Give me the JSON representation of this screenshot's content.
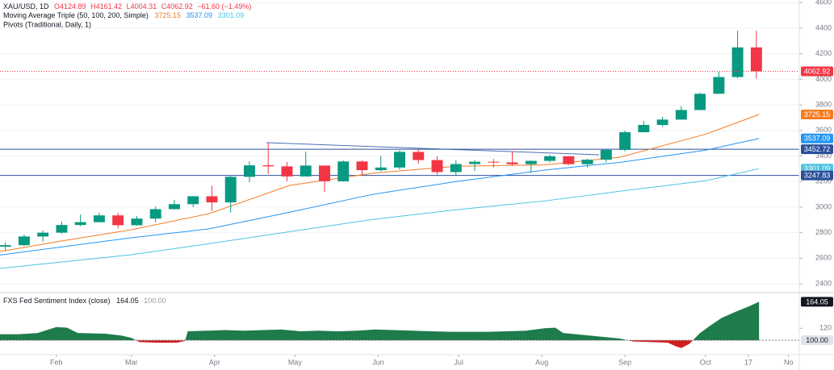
{
  "chart_data": [
    {
      "type": "candlestick",
      "header": {
        "symbol": "XAU/USD, 1D",
        "open": "O4124.89",
        "high": "H4161.42",
        "low": "L4004.31",
        "close": "C4062.92",
        "change": "−61.60 (−1.49%)"
      },
      "indicator_title": "Moving Average Triple (50, 100, 200, Simple)",
      "pivots_title": "Pivots (Traditional, Daily, 1)",
      "x": [
        13,
        20,
        27,
        34,
        41,
        48,
        55,
        62,
        69,
        76,
        83,
        90,
        97,
        104,
        111,
        118,
        125,
        132,
        139,
        146,
        153,
        160,
        167,
        174,
        181,
        188,
        195,
        202,
        209,
        216,
        223,
        230,
        237,
        244,
        251,
        258,
        265,
        272,
        279,
        286,
        293
      ],
      "open": [
        2690,
        2702,
        2770,
        2800,
        2860,
        2882,
        2935,
        2858,
        2910,
        2984,
        3023,
        3085,
        3037,
        3237,
        3327,
        3319,
        3240,
        3325,
        3202,
        3357,
        3289,
        3310,
        3432,
        3368,
        3274,
        3337,
        3355,
        3350,
        3336,
        3362,
        3398,
        3336,
        3371,
        3448,
        3586,
        3643,
        3685,
        3760,
        3887,
        4018,
        4250
      ],
      "high": [
        2725,
        2785,
        2817,
        2886,
        2942,
        2954,
        2956,
        2930,
        3004,
        3057,
        3087,
        3167,
        3245,
        3358,
        3500,
        3353,
        3435,
        3325,
        3365,
        3365,
        3403,
        3445,
        3452,
        3398,
        3365,
        3368,
        3377,
        3438,
        3365,
        3410,
        3400,
        3378,
        3453,
        3600,
        3674,
        3707,
        3791,
        3897,
        4059,
        4380,
        4381
      ],
      "low": [
        2660,
        2695,
        2730,
        2790,
        2850,
        2880,
        2832,
        2855,
        2880,
        2980,
        3000,
        2970,
        2957,
        3195,
        3260,
        3202,
        3240,
        3120,
        3200,
        3245,
        3280,
        3294,
        3340,
        3255,
        3248,
        3283,
        3310,
        3325,
        3268,
        3350,
        3330,
        3311,
        3351,
        3436,
        3584,
        3627,
        3684,
        3758,
        3886,
        4008,
        4004.31
      ],
      "close": [
        2702,
        2770,
        2800,
        2860,
        2882,
        2935,
        2858,
        2910,
        2984,
        3023,
        3085,
        3037,
        3237,
        3327,
        3319,
        3240,
        3325,
        3202,
        3357,
        3289,
        3310,
        3432,
        3368,
        3274,
        3337,
        3355,
        3350,
        3336,
        3362,
        3398,
        3336,
        3371,
        3448,
        3586,
        3643,
        3685,
        3760,
        3887,
        4018,
        4250,
        4062.92
      ],
      "up_color": "#089981",
      "down_color": "#f23645",
      "series": [
        {
          "name": "MA 50",
          "color": "#f57c1f",
          "x": [
            11,
            32,
            60,
            89,
            119,
            150,
            181,
            214,
            242,
            274,
            294
          ],
          "values": [
            2652,
            2728,
            2823,
            2949,
            3170,
            3265,
            3320,
            3330,
            3390,
            3570,
            3725.15
          ]
        },
        {
          "name": "MA 100",
          "color": "#2196f3",
          "x": [
            11,
            60,
            89,
            119,
            150,
            181,
            214,
            242,
            274,
            294
          ],
          "values": [
            2625,
            2760,
            2830,
            2960,
            3100,
            3200,
            3290,
            3350,
            3445,
            3537.09
          ]
        },
        {
          "name": "MA 200",
          "color": "#4dc3e0",
          "x": [
            11,
            60,
            89,
            119,
            150,
            181,
            214,
            242,
            274,
            294
          ],
          "values": [
            2520,
            2627,
            2714,
            2808,
            2903,
            2979,
            3048,
            3124,
            3206,
            3301.09
          ]
        }
      ],
      "pivots": {
        "values": [
          3452.72,
          3247.83
        ],
        "color": "#2a4f9a"
      },
      "xlim": [
        11,
        309
      ],
      "ylim": [
        2337,
        4621
      ],
      "yticks": [
        2400,
        2600,
        2800,
        3000,
        3200,
        3400,
        3600,
        3800,
        4000,
        4200,
        4400,
        4600
      ],
      "xticks": [
        {
          "value": 32,
          "label": "Feb"
        },
        {
          "value": 60,
          "label": "Mar"
        },
        {
          "value": 91,
          "label": "Apr"
        },
        {
          "value": 121,
          "label": "May"
        },
        {
          "value": 152,
          "label": "Jun"
        },
        {
          "value": 182,
          "label": "Jul"
        },
        {
          "value": 213,
          "label": "Aug"
        },
        {
          "value": 244,
          "label": "Sep"
        },
        {
          "value": 274,
          "label": "Oct"
        },
        {
          "value": 290,
          "label": "17"
        },
        {
          "value": 305,
          "label": "No"
        }
      ],
      "grid": true
    },
    {
      "type": "area",
      "title": "FXS Fed Sentiment Index (close)",
      "x": [
        11,
        18,
        25,
        32,
        36,
        40,
        50,
        56,
        60,
        63,
        70,
        77,
        80,
        81,
        88,
        95,
        102,
        109,
        116,
        123,
        130,
        137,
        144,
        151,
        158,
        165,
        172,
        179,
        186,
        193,
        200,
        207,
        214,
        218,
        221,
        228,
        235,
        242,
        247,
        254,
        260,
        263,
        265,
        268,
        272,
        276,
        280,
        285,
        290,
        294
      ],
      "values": [
        110,
        110,
        112,
        122,
        121,
        112,
        111,
        108,
        104,
        97,
        96,
        96,
        99,
        115,
        116,
        117,
        116,
        117,
        118,
        115,
        116,
        115,
        116,
        118,
        117,
        116,
        115,
        114,
        114,
        114,
        115,
        116,
        120,
        121,
        112,
        109,
        106,
        103,
        98,
        97,
        96,
        90,
        87,
        94,
        112,
        125,
        137,
        147,
        156,
        164.05
      ],
      "baseline": 100,
      "baseline_label": "100.00",
      "above_color": "#1e7b4b",
      "below_color": "#d01e1e",
      "xlim": [
        11,
        309
      ],
      "ylim": [
        76,
        178
      ],
      "yticks": [
        120
      ]
    }
  ]
}
